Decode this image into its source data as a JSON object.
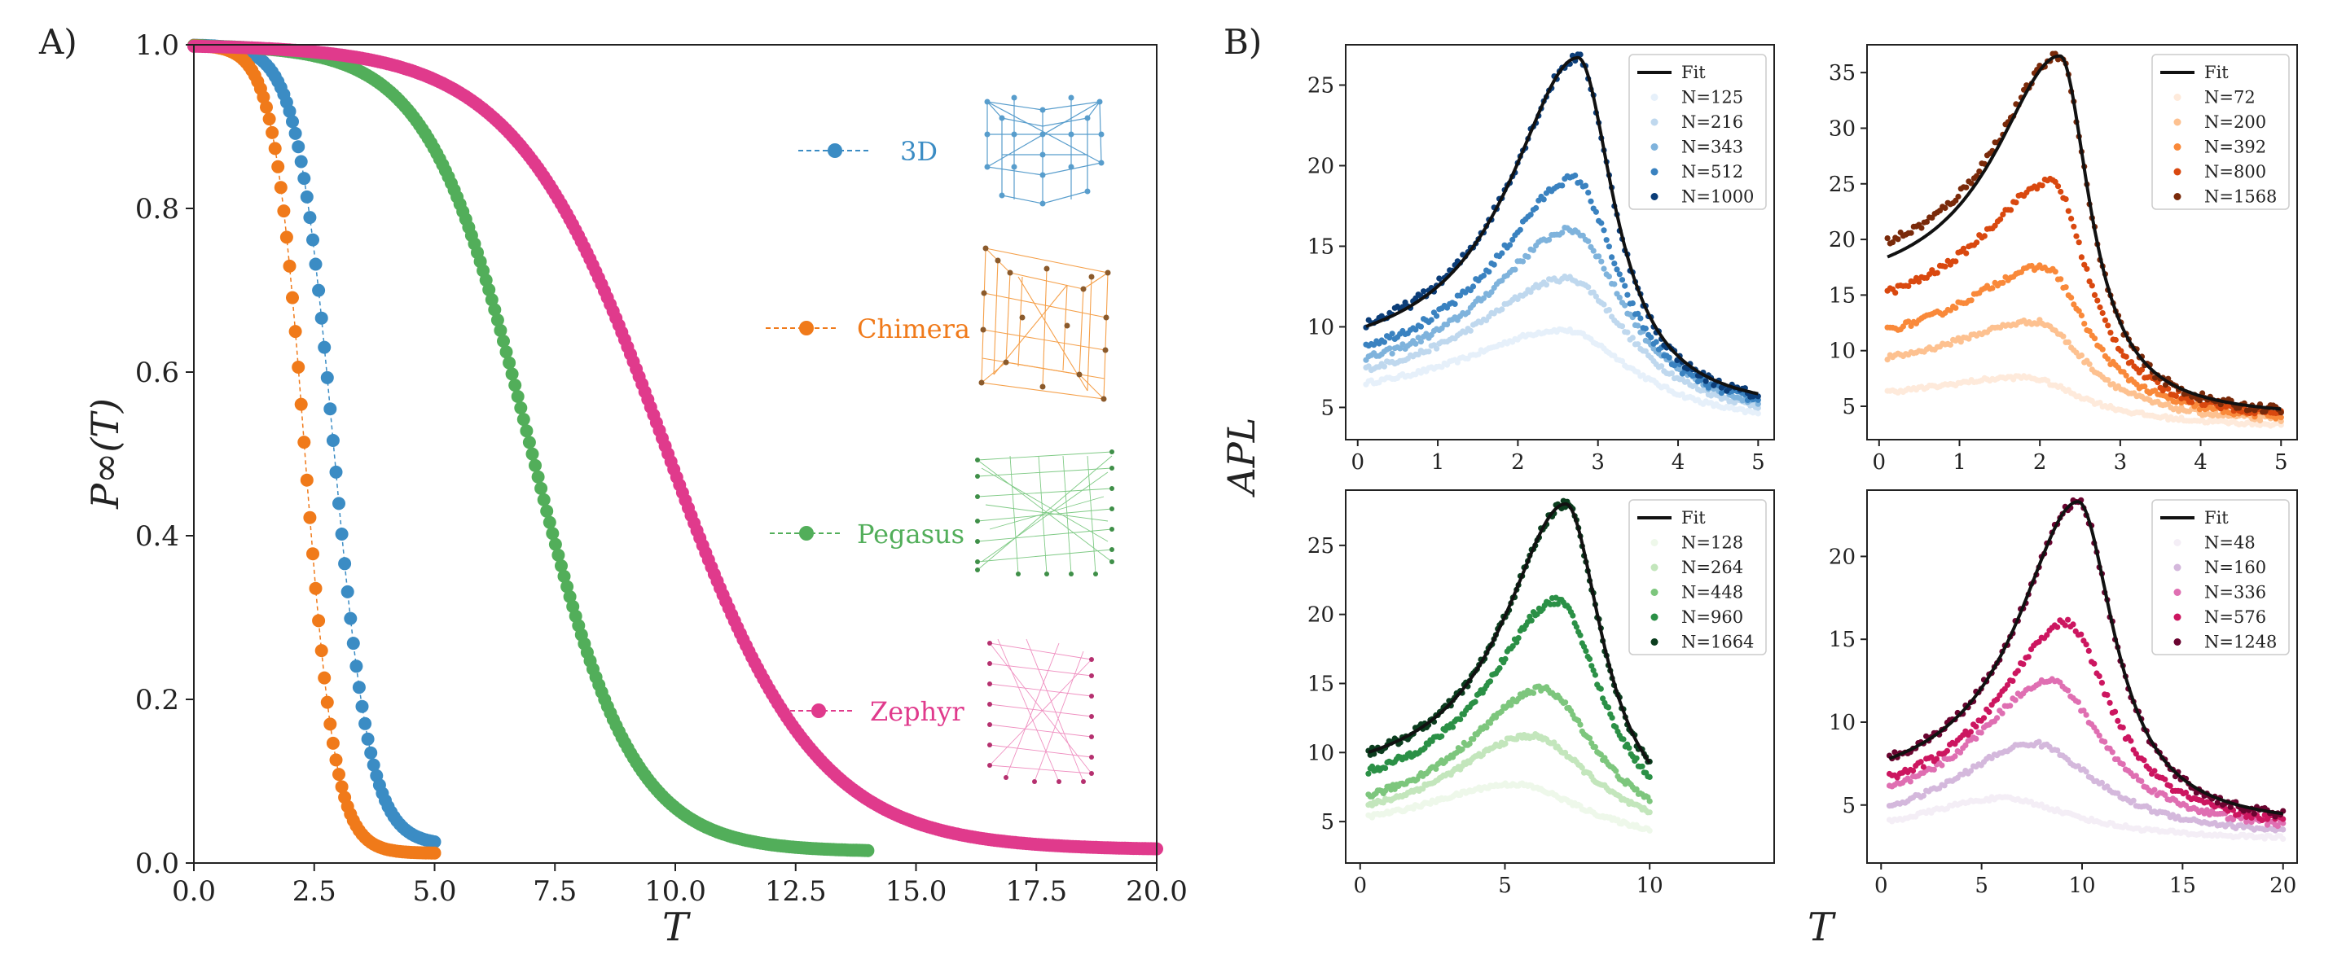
{
  "colors": {
    "blue": "#3b8cc4",
    "orange": "#f07a1a",
    "green": "#52ae5a",
    "pink": "#e03a8c",
    "black": "#111111"
  },
  "icons": [
    "3d-lattice-icon",
    "chimera-graph-icon",
    "pegasus-graph-icon",
    "zephyr-graph-icon"
  ],
  "chart_data": [
    {
      "panel": "A)",
      "type": "line",
      "xlabel": "T",
      "ylabel": "P∞(T)",
      "xlim": [
        0,
        20
      ],
      "ylim": [
        0,
        1
      ],
      "xticks": [
        "0.0",
        "2.5",
        "5.0",
        "7.5",
        "10.0",
        "12.5",
        "15.0",
        "17.5",
        "20.0"
      ],
      "yticks": [
        "0.0",
        "0.2",
        "0.4",
        "0.6",
        "0.8",
        "1.0"
      ],
      "series": [
        {
          "name": "3D",
          "color": "#3b8cc4",
          "T0": 2.9,
          "w": 0.38,
          "tmax": 5.0,
          "tail": 0.022
        },
        {
          "name": "Chimera",
          "color": "#f07a1a",
          "T0": 2.3,
          "w": 0.32,
          "tmax": 5.0,
          "tail": 0.012
        },
        {
          "name": "Pegasus",
          "color": "#52ae5a",
          "T0": 7.0,
          "w": 1.05,
          "tmax": 14.0,
          "tail": 0.014
        },
        {
          "name": "Zephyr",
          "color": "#e03a8c",
          "T0": 9.8,
          "w": 1.55,
          "tmax": 20.0,
          "tail": 0.016
        }
      ]
    },
    {
      "panel": "B)",
      "type": "scatter",
      "shared_xlabel": "T",
      "shared_ylabel": "APL",
      "subplots": [
        {
          "name": "blue",
          "xlim": [
            -0.15,
            5.2
          ],
          "ylim": [
            3,
            27.5
          ],
          "xticks": [
            0,
            1,
            2,
            3,
            4,
            5
          ],
          "yticks": [
            5,
            10,
            15,
            20,
            25
          ],
          "fit": {
            "Tc": 2.75,
            "peak": 26.7,
            "base_left": 7.4,
            "base_right": 4.6,
            "wl": 1.05,
            "wr": 0.55
          },
          "legend": [
            "Fit",
            "N=125",
            "N=216",
            "N=343",
            "N=512",
            "N=1000"
          ],
          "series": [
            {
              "label": "N=125",
              "color": "#e6f0fa",
              "peak": 9.8,
              "Tc": 2.55,
              "base": 5.2
            },
            {
              "label": "N=216",
              "color": "#bfd8ee",
              "peak": 13.0,
              "Tc": 2.62,
              "base": 5.6
            },
            {
              "label": "N=343",
              "color": "#7fb3dc",
              "peak": 16.0,
              "Tc": 2.67,
              "base": 6.0
            },
            {
              "label": "N=512",
              "color": "#3a82c0",
              "peak": 19.2,
              "Tc": 2.7,
              "base": 6.8
            },
            {
              "label": "N=1000",
              "color": "#0b3d78",
              "peak": 26.7,
              "Tc": 2.75,
              "base": 7.6
            }
          ]
        },
        {
          "name": "orange",
          "xlim": [
            -0.15,
            5.2
          ],
          "ylim": [
            2,
            37.5
          ],
          "xticks": [
            0,
            1,
            2,
            3,
            4,
            5
          ],
          "yticks": [
            5,
            10,
            15,
            20,
            25,
            30,
            35
          ],
          "fit": {
            "Tc": 2.25,
            "peak": 36.5,
            "base_left": 14.5,
            "base_right": 3.9,
            "wl": 1.0,
            "wr": 0.45
          },
          "legend": [
            "Fit",
            "N=72",
            "N=200",
            "N=392",
            "N=800",
            "N=1568"
          ],
          "series": [
            {
              "label": "N=72",
              "color": "#feeadb",
              "peak": 7.6,
              "Tc": 1.8,
              "base": 5.3
            },
            {
              "label": "N=200",
              "color": "#fdc190",
              "peak": 12.6,
              "Tc": 1.95,
              "base": 7.6
            },
            {
              "label": "N=392",
              "color": "#f9893a",
              "peak": 17.5,
              "Tc": 2.05,
              "base": 9.6
            },
            {
              "label": "N=800",
              "color": "#d9480f",
              "peak": 25.2,
              "Tc": 2.15,
              "base": 12.3
            },
            {
              "label": "N=1568",
              "color": "#7a2a0a",
              "peak": 36.5,
              "Tc": 2.25,
              "base": 16.2
            }
          ]
        },
        {
          "name": "green",
          "xlim": [
            -0.5,
            14.3
          ],
          "ylim": [
            2,
            29
          ],
          "xticks": [
            0,
            5,
            10
          ],
          "yticks": [
            5,
            10,
            15,
            20,
            25
          ],
          "fit": {
            "Tc": 7.1,
            "peak": 28.0,
            "base_left": 7.4,
            "base_right": 3.9,
            "wl": 2.6,
            "wr": 1.55
          },
          "legend": [
            "Fit",
            "N=128",
            "N=264",
            "N=448",
            "N=960",
            "N=1664"
          ],
          "series": [
            {
              "label": "N=128",
              "color": "#eef8ea",
              "peak": 7.7,
              "Tc": 5.3,
              "base": 4.0
            },
            {
              "label": "N=264",
              "color": "#c3e6bc",
              "peak": 11.2,
              "Tc": 5.9,
              "base": 4.2
            },
            {
              "label": "N=448",
              "color": "#7dc67d",
              "peak": 14.6,
              "Tc": 6.3,
              "base": 4.7
            },
            {
              "label": "N=960",
              "color": "#2b9046",
              "peak": 21.0,
              "Tc": 6.8,
              "base": 6.2
            },
            {
              "label": "N=1664",
              "color": "#0b3d1e",
              "peak": 28.0,
              "Tc": 7.1,
              "base": 7.4
            }
          ]
        },
        {
          "name": "pink",
          "xlim": [
            -0.7,
            20.7
          ],
          "ylim": [
            1.5,
            24
          ],
          "xticks": [
            0,
            5,
            10,
            15,
            20
          ],
          "yticks": [
            5,
            10,
            15,
            20
          ],
          "fit": {
            "Tc": 9.8,
            "peak": 23.3,
            "base_left": 5.4,
            "base_right": 3.6,
            "wl": 3.7,
            "wr": 2.2
          },
          "legend": [
            "Fit",
            "N=48",
            "N=160",
            "N=336",
            "N=576",
            "N=1248"
          ],
          "series": [
            {
              "label": "N=48",
              "color": "#f4eef6",
              "peak": 5.4,
              "Tc": 6.0,
              "base": 2.7
            },
            {
              "label": "N=160",
              "color": "#d4b8dc",
              "peak": 8.7,
              "Tc": 7.6,
              "base": 3.1
            },
            {
              "label": "N=336",
              "color": "#df6fb2",
              "peak": 12.5,
              "Tc": 8.4,
              "base": 3.9
            },
            {
              "label": "N=576",
              "color": "#cc1660",
              "peak": 16.0,
              "Tc": 9.2,
              "base": 4.6
            },
            {
              "label": "N=1248",
              "color": "#6a0430",
              "peak": 23.3,
              "Tc": 9.8,
              "base": 5.5
            }
          ]
        }
      ]
    }
  ]
}
